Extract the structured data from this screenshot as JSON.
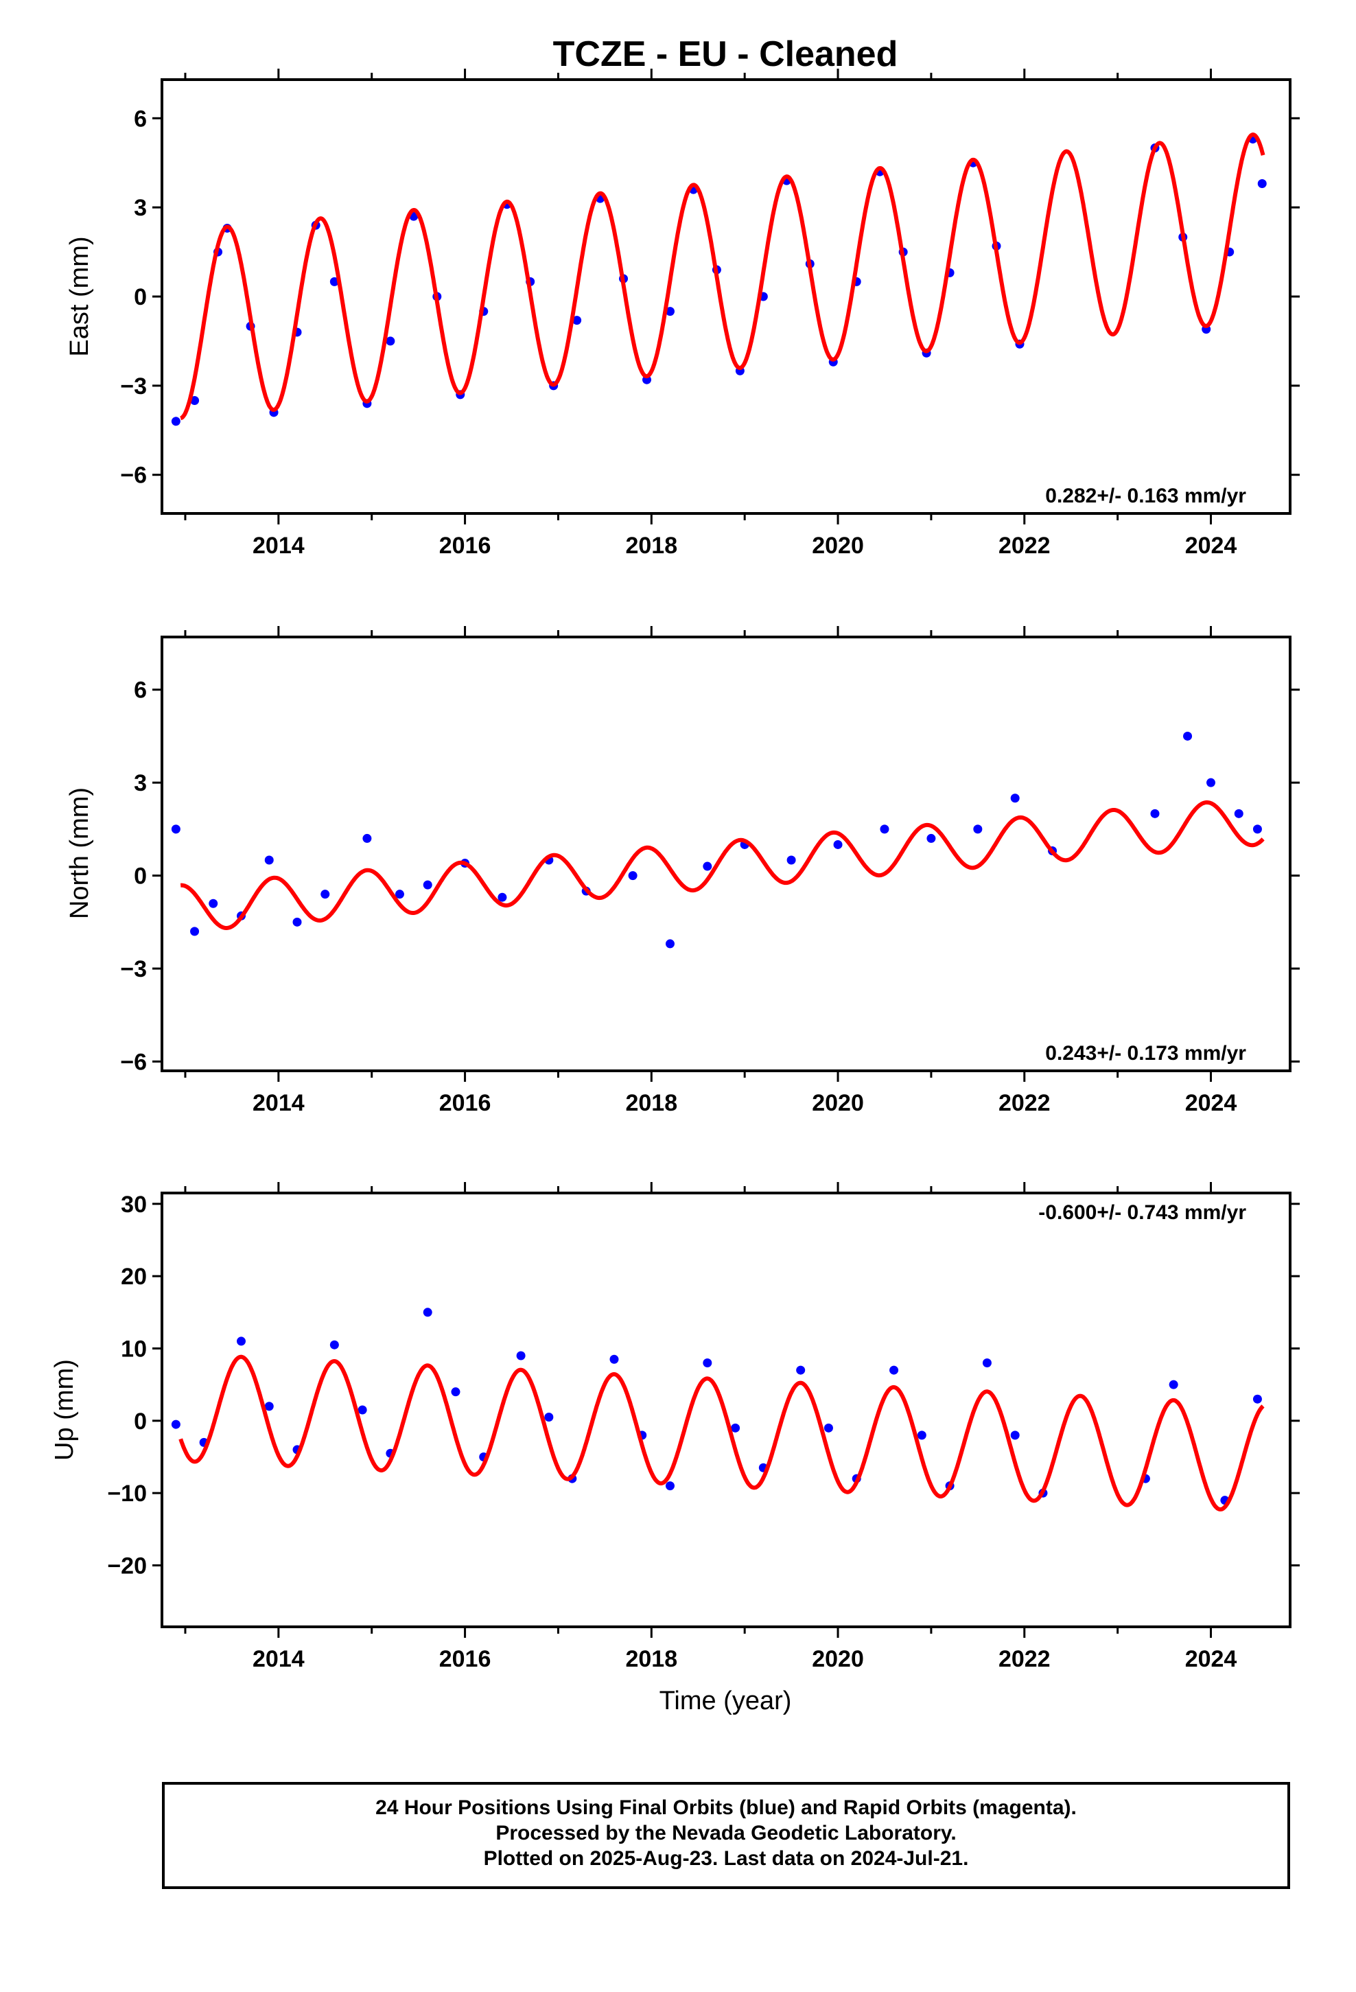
{
  "title": "TCZE  - EU - Cleaned",
  "colors": {
    "points": "#0000ff",
    "fit": "#ff0000",
    "frame": "#000000"
  },
  "chart_data": [
    {
      "type": "scatter",
      "ylabel": "East (mm)",
      "xlim": [
        2012.75,
        2024.85
      ],
      "ylim": [
        -7.3,
        7.3
      ],
      "yticks": [
        -6,
        -3,
        0,
        3,
        6
      ],
      "ytick_labels": [
        "−6",
        "−3",
        "0",
        "3",
        "6"
      ],
      "xticks": [
        2014,
        2016,
        2018,
        2020,
        2022,
        2024
      ],
      "xtick_labels": [
        "2014",
        "2016",
        "2018",
        "2020",
        "2022",
        "2024"
      ],
      "rate_label": "0.282+/- 0.163 mm/yr",
      "rate_position": "bottom-right",
      "series": [
        {
          "values": [
            [
              2012.9,
              -4.2
            ],
            [
              2013.1,
              -3.5
            ],
            [
              2013.35,
              1.5
            ],
            [
              2013.45,
              2.3
            ],
            [
              2013.7,
              -1.0
            ],
            [
              2013.95,
              -3.9
            ],
            [
              2014.2,
              -1.2
            ],
            [
              2014.4,
              2.4
            ],
            [
              2014.6,
              0.5
            ],
            [
              2014.95,
              -3.6
            ],
            [
              2015.2,
              -1.5
            ],
            [
              2015.45,
              2.7
            ],
            [
              2015.7,
              0.0
            ],
            [
              2015.95,
              -3.3
            ],
            [
              2016.2,
              -0.5
            ],
            [
              2016.45,
              3.1
            ],
            [
              2016.7,
              0.5
            ],
            [
              2016.95,
              -3.0
            ],
            [
              2017.2,
              -0.8
            ],
            [
              2017.45,
              3.3
            ],
            [
              2017.7,
              0.6
            ],
            [
              2017.95,
              -2.8
            ],
            [
              2018.2,
              -0.5
            ],
            [
              2018.45,
              3.6
            ],
            [
              2018.7,
              0.9
            ],
            [
              2018.95,
              -2.5
            ],
            [
              2019.2,
              0.0
            ],
            [
              2019.45,
              3.9
            ],
            [
              2019.7,
              1.1
            ],
            [
              2019.95,
              -2.2
            ],
            [
              2020.2,
              0.5
            ],
            [
              2020.45,
              4.2
            ],
            [
              2020.7,
              1.5
            ],
            [
              2020.95,
              -1.9
            ],
            [
              2021.2,
              0.8
            ],
            [
              2021.45,
              4.5
            ],
            [
              2021.7,
              1.7
            ],
            [
              2021.95,
              -1.6
            ],
            [
              2023.4,
              5.0
            ],
            [
              2023.7,
              2.0
            ],
            [
              2023.95,
              -1.1
            ],
            [
              2024.2,
              1.5
            ],
            [
              2024.45,
              5.3
            ],
            [
              2024.55,
              3.8
            ]
          ]
        }
      ],
      "fit": {
        "amplitude": 3.15,
        "rate_mm_per_yr": 0.282,
        "offset_at_2013": -0.93,
        "peak_phase_yr": 0.45
      }
    },
    {
      "type": "scatter",
      "ylabel": "North (mm)",
      "xlim": [
        2012.75,
        2024.85
      ],
      "ylim": [
        -6.3,
        7.7
      ],
      "yticks": [
        -6,
        -3,
        0,
        3,
        6
      ],
      "ytick_labels": [
        "−6",
        "−3",
        "0",
        "3",
        "6"
      ],
      "xticks": [
        2014,
        2016,
        2018,
        2020,
        2022,
        2024
      ],
      "xtick_labels": [
        "2014",
        "2016",
        "2018",
        "2020",
        "2022",
        "2024"
      ],
      "rate_label": "0.243+/- 0.173 mm/yr",
      "rate_position": "bottom-right",
      "series": [
        {
          "values": [
            [
              2012.9,
              1.5
            ],
            [
              2013.1,
              -1.8
            ],
            [
              2013.3,
              -0.9
            ],
            [
              2013.6,
              -1.3
            ],
            [
              2013.9,
              0.5
            ],
            [
              2014.2,
              -1.5
            ],
            [
              2014.5,
              -0.6
            ],
            [
              2014.95,
              1.2
            ],
            [
              2015.3,
              -0.6
            ],
            [
              2015.6,
              -0.3
            ],
            [
              2016.0,
              0.4
            ],
            [
              2016.4,
              -0.7
            ],
            [
              2016.9,
              0.5
            ],
            [
              2017.3,
              -0.5
            ],
            [
              2017.8,
              0.0
            ],
            [
              2018.2,
              -2.2
            ],
            [
              2018.6,
              0.3
            ],
            [
              2019.0,
              1.0
            ],
            [
              2019.5,
              0.5
            ],
            [
              2020.0,
              1.0
            ],
            [
              2020.5,
              1.5
            ],
            [
              2021.0,
              1.2
            ],
            [
              2021.5,
              1.5
            ],
            [
              2021.9,
              2.5
            ],
            [
              2022.3,
              0.8
            ],
            [
              2023.4,
              2.0
            ],
            [
              2023.75,
              4.5
            ],
            [
              2024.0,
              3.0
            ],
            [
              2024.3,
              2.0
            ],
            [
              2024.5,
              1.5
            ]
          ]
        }
      ],
      "fit": {
        "amplitude": 0.75,
        "rate_mm_per_yr": 0.243,
        "offset_at_2013": -1.05,
        "peak_phase_yr": 0.95
      }
    },
    {
      "type": "scatter",
      "ylabel": "Up (mm)",
      "xlabel": "Time (year)",
      "xlim": [
        2012.75,
        2024.85
      ],
      "ylim": [
        -28.5,
        31.5
      ],
      "yticks": [
        -20,
        -10,
        0,
        10,
        20,
        30
      ],
      "ytick_labels": [
        "−20",
        "−10",
        "0",
        "10",
        "20",
        "30"
      ],
      "xticks": [
        2014,
        2016,
        2018,
        2020,
        2022,
        2024
      ],
      "xtick_labels": [
        "2014",
        "2016",
        "2018",
        "2020",
        "2022",
        "2024"
      ],
      "rate_label": "-0.600+/- 0.743 mm/yr",
      "rate_position": "top-right",
      "series": [
        {
          "values": [
            [
              2012.9,
              -0.5
            ],
            [
              2013.2,
              -3.0
            ],
            [
              2013.6,
              11.0
            ],
            [
              2013.9,
              2.0
            ],
            [
              2014.2,
              -4.0
            ],
            [
              2014.6,
              10.5
            ],
            [
              2014.9,
              1.5
            ],
            [
              2015.2,
              -4.5
            ],
            [
              2015.6,
              15.0
            ],
            [
              2015.9,
              4.0
            ],
            [
              2016.2,
              -5.0
            ],
            [
              2016.6,
              9.0
            ],
            [
              2016.9,
              0.5
            ],
            [
              2017.15,
              -8.0
            ],
            [
              2017.6,
              8.5
            ],
            [
              2017.9,
              -2.0
            ],
            [
              2018.2,
              -9.0
            ],
            [
              2018.6,
              8.0
            ],
            [
              2018.9,
              -1.0
            ],
            [
              2019.2,
              -6.5
            ],
            [
              2019.6,
              7.0
            ],
            [
              2019.9,
              -1.0
            ],
            [
              2020.2,
              -8.0
            ],
            [
              2020.6,
              7.0
            ],
            [
              2020.9,
              -2.0
            ],
            [
              2021.2,
              -9.0
            ],
            [
              2021.6,
              8.0
            ],
            [
              2021.9,
              -2.0
            ],
            [
              2022.2,
              -10.0
            ],
            [
              2023.3,
              -8.0
            ],
            [
              2023.6,
              5.0
            ],
            [
              2024.15,
              -11.0
            ],
            [
              2024.5,
              3.0
            ]
          ]
        }
      ],
      "fit": {
        "amplitude": 7.4,
        "rate_mm_per_yr": -0.6,
        "offset_at_2013": 1.8,
        "peak_phase_yr": 0.6
      }
    }
  ],
  "footer": {
    "line1": "24 Hour Positions Using Final Orbits (blue) and Rapid Orbits (magenta).",
    "line2": "Processed by the Nevada Geodetic Laboratory.",
    "line3": "Plotted on 2025-Aug-23. Last data on 2024-Jul-21."
  }
}
